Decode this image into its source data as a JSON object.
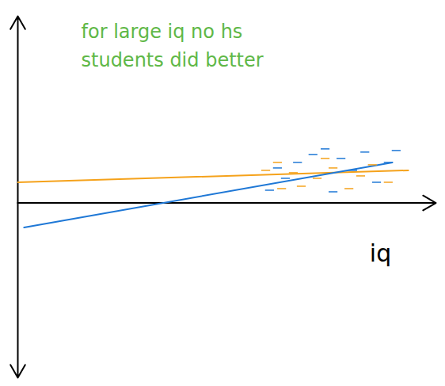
{
  "chart_data": {
    "type": "line",
    "annotation": "for large iq no hs students did better",
    "xlabel": "iq",
    "xlim": [
      0,
      10
    ],
    "ylim": [
      -4.4,
      4.7
    ],
    "tick_labels": false,
    "grid": false,
    "series": [
      {
        "type": "line",
        "color": "#f5a21b",
        "line_style": "solid",
        "x": [
          0,
          9.34
        ],
        "values": [
          0.52,
          0.82
        ]
      },
      {
        "type": "line",
        "color": "#1f78d6",
        "line_style": "solid",
        "x": [
          0.15,
          8.96
        ],
        "values": [
          -0.62,
          1.02
        ]
      },
      {
        "type": "scatter",
        "color": "#f5a21b",
        "marker": "dash",
        "x": [
          5.93,
          6.21,
          6.59,
          6.78,
          7.16,
          7.54,
          7.92,
          8.2,
          8.48,
          8.86,
          6.31,
          7.35
        ],
        "values": [
          0.82,
          1.02,
          0.76,
          0.42,
          0.62,
          0.88,
          0.36,
          0.68,
          0.96,
          0.52,
          0.36,
          1.12
        ]
      },
      {
        "type": "scatter",
        "color": "#1f78d6",
        "marker": "dash",
        "x": [
          6.02,
          6.4,
          6.69,
          7.06,
          7.35,
          7.73,
          8.01,
          8.3,
          8.58,
          8.86,
          9.05,
          6.21,
          7.54
        ],
        "values": [
          0.32,
          0.62,
          1.02,
          1.22,
          1.36,
          1.12,
          0.82,
          1.28,
          0.52,
          1.02,
          1.32,
          0.88,
          0.28
        ]
      }
    ]
  }
}
